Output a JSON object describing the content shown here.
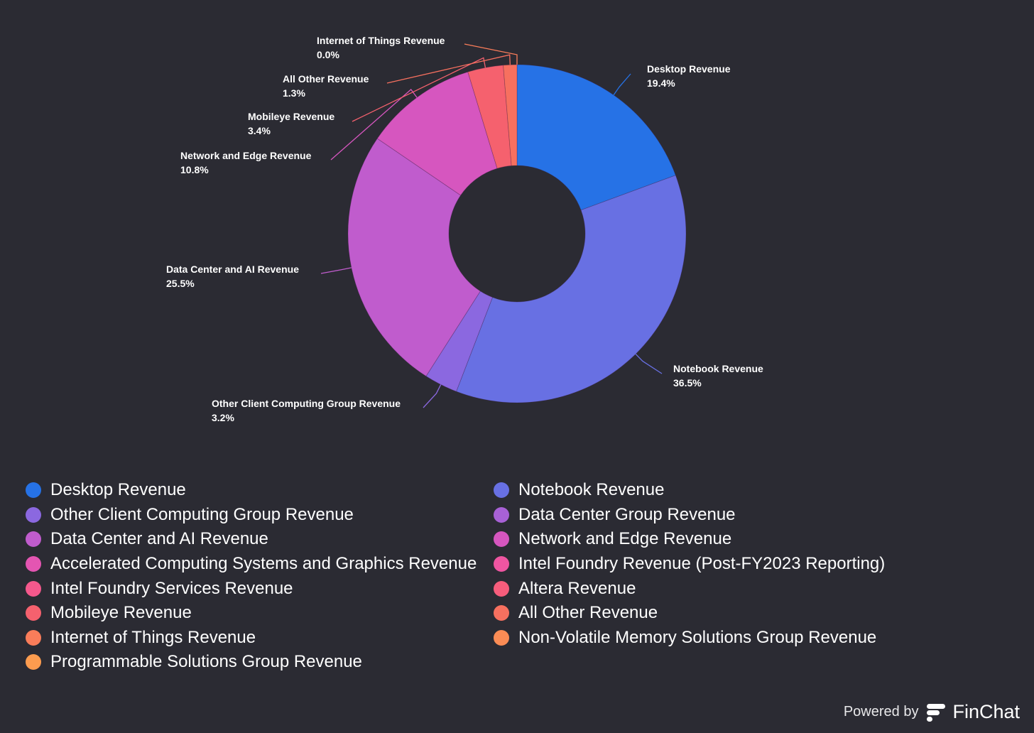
{
  "chart_data": {
    "type": "pie",
    "donut": true,
    "slices": [
      {
        "name": "Desktop Revenue",
        "value": 19.4,
        "label": "19.4%",
        "color": "#2672e6",
        "labeled": true
      },
      {
        "name": "Notebook Revenue",
        "value": 36.5,
        "label": "36.5%",
        "color": "#6870e3",
        "labeled": true
      },
      {
        "name": "Other Client Computing Group Revenue",
        "value": 3.2,
        "label": "3.2%",
        "color": "#8b68e0",
        "labeled": true
      },
      {
        "name": "Data Center and AI Revenue",
        "value": 25.5,
        "label": "25.5%",
        "color": "#c05ccd",
        "labeled": true
      },
      {
        "name": "Network and Edge Revenue",
        "value": 10.8,
        "label": "10.8%",
        "color": "#d656bf",
        "labeled": true
      },
      {
        "name": "Mobileye Revenue",
        "value": 3.4,
        "label": "3.4%",
        "color": "#f5616e",
        "labeled": true
      },
      {
        "name": "All Other Revenue",
        "value": 1.3,
        "label": "1.3%",
        "color": "#f7705f",
        "labeled": true
      },
      {
        "name": "Internet of Things Revenue",
        "value": 0.0,
        "label": "0.0%",
        "color": "#fa7d5a",
        "labeled": true
      }
    ],
    "legend": {
      "placement": "bottom",
      "entries": [
        {
          "name": "Desktop Revenue",
          "color": "#2672e6"
        },
        {
          "name": "Notebook Revenue",
          "color": "#6870e3"
        },
        {
          "name": "Other Client Computing Group Revenue",
          "color": "#8b68e0"
        },
        {
          "name": "Data Center Group Revenue",
          "color": "#a861d6"
        },
        {
          "name": "Data Center and AI Revenue",
          "color": "#c05ccd"
        },
        {
          "name": "Network and Edge Revenue",
          "color": "#d656bf"
        },
        {
          "name": "Accelerated Computing Systems and Graphics Revenue",
          "color": "#e455b2"
        },
        {
          "name": "Intel Foundry Revenue (Post-FY2023 Reporting)",
          "color": "#ef55a1"
        },
        {
          "name": "Intel Foundry Services Revenue",
          "color": "#f5588c"
        },
        {
          "name": "Altera Revenue",
          "color": "#f75d7c"
        },
        {
          "name": "Mobileye Revenue",
          "color": "#f5616e"
        },
        {
          "name": "All Other Revenue",
          "color": "#f7705f"
        },
        {
          "name": "Internet of Things Revenue",
          "color": "#fa7d5a"
        },
        {
          "name": "Non-Volatile Memory Solutions Group Revenue",
          "color": "#fb8c55"
        },
        {
          "name": "Programmable Solutions Group Revenue",
          "color": "#fd9c4f"
        }
      ]
    }
  },
  "footer": {
    "powered_by": "Powered by",
    "brand": "FinChat"
  }
}
